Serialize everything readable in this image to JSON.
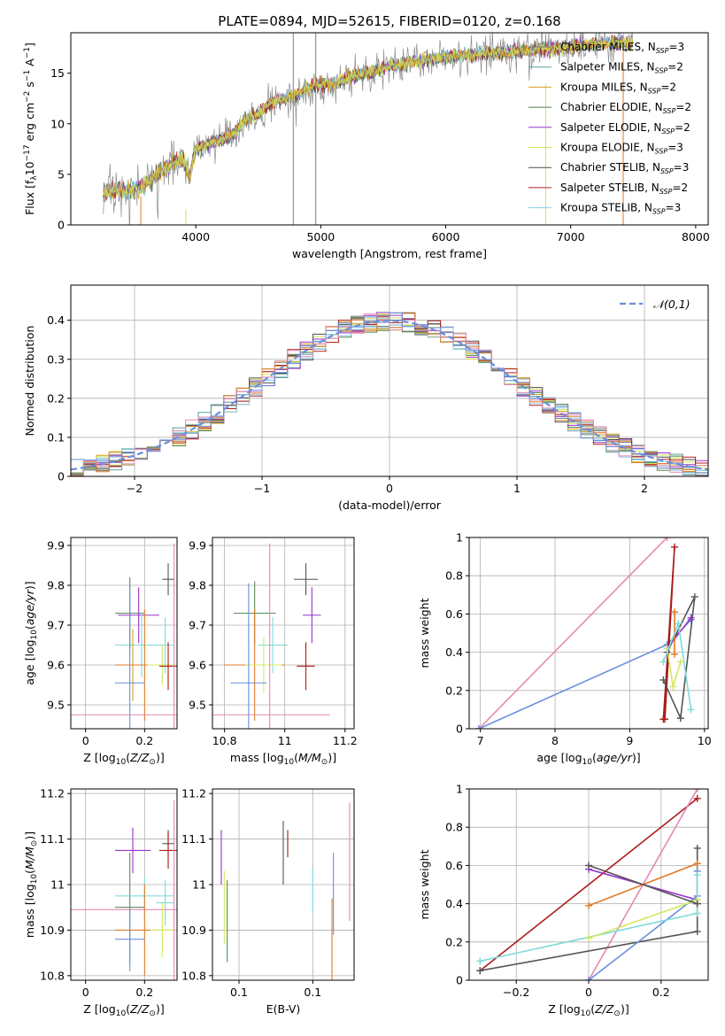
{
  "title": "PLATE=0894, MJD=52615, FIBERID=0120, z=0.168",
  "colors": {
    "Chabrier MILES": "#7f7f7f",
    "Salpeter MILES": "#5f9ea0",
    "Kroupa MILES": "#d4a017",
    "Chabrier ELODIE": "#4f7f4f",
    "Salpeter ELODIE": "#9932cc",
    "Kroupa ELODIE": "#d4e157",
    "Chabrier STELIB": "#4d4d4d",
    "Salpeter STELIB": "#b22222",
    "Kroupa STELIB": "#87ceeb",
    "blue": "#6a8fdc",
    "orange": "#e07b28",
    "pink": "#e589b3",
    "cyan": "#7fdada",
    "purple": "#9933cc",
    "darkgray": "#555555",
    "darkred": "#aa1a1a",
    "yellowgreen": "#d4e860",
    "green": "#5a8a5a"
  },
  "chart_data": [
    {
      "type": "line",
      "xlabel": "wavelength [Angstrom, rest frame]",
      "ylabel": "Flux [f_λ10⁻¹⁷ erg cm⁻² s⁻¹ A⁻¹]",
      "xlim": [
        3000,
        8100
      ],
      "ylim": [
        0,
        19
      ],
      "xticks": [
        4000,
        5000,
        6000,
        7000,
        8000
      ],
      "yticks": [
        0,
        5,
        10,
        15
      ],
      "legend": [
        {
          "label": "Chabrier MILES, N_SSP=3",
          "color": "#7f7f7f"
        },
        {
          "label": "Salpeter MILES, N_SSP=2",
          "color": "#5f9ea0"
        },
        {
          "label": "Kroupa MILES, N_SSP=2",
          "color": "#d4a017"
        },
        {
          "label": "Chabrier ELODIE, N_SSP=2",
          "color": "#4f7f4f"
        },
        {
          "label": "Salpeter ELODIE, N_SSP=2",
          "color": "#9932cc"
        },
        {
          "label": "Kroupa ELODIE, N_SSP=3",
          "color": "#d4e157"
        },
        {
          "label": "Chabrier STELIB, N_SSP=3",
          "color": "#4d4d4d"
        },
        {
          "label": "Salpeter STELIB, N_SSP=2",
          "color": "#b22222"
        },
        {
          "label": "Kroupa STELIB, N_SSP=3",
          "color": "#87ceeb"
        }
      ],
      "spectrum_anchor_points": [
        [
          3260,
          3.3
        ],
        [
          3500,
          3.4
        ],
        [
          3600,
          4.0
        ],
        [
          3700,
          5.0
        ],
        [
          3800,
          6.0
        ],
        [
          3900,
          6.5
        ],
        [
          3950,
          4.5
        ],
        [
          4000,
          7.5
        ],
        [
          4100,
          8.0
        ],
        [
          4200,
          8.5
        ],
        [
          4300,
          9.0
        ],
        [
          4400,
          10.5
        ],
        [
          4500,
          11.0
        ],
        [
          4600,
          12.0
        ],
        [
          4700,
          12.5
        ],
        [
          4800,
          12.8
        ],
        [
          4900,
          13.5
        ],
        [
          5000,
          14.0
        ],
        [
          5100,
          13.8
        ],
        [
          5200,
          14.5
        ],
        [
          5300,
          14.8
        ],
        [
          5400,
          15.0
        ],
        [
          5500,
          15.5
        ],
        [
          5600,
          15.8
        ],
        [
          5700,
          16.0
        ],
        [
          5800,
          16.3
        ],
        [
          5900,
          16.5
        ],
        [
          6000,
          16.7
        ],
        [
          6200,
          16.8
        ],
        [
          6400,
          17.0
        ],
        [
          6600,
          17.2
        ],
        [
          6800,
          17.4
        ],
        [
          7000,
          17.6
        ],
        [
          7200,
          17.9
        ],
        [
          7400,
          18.0
        ]
      ]
    },
    {
      "type": "histogram",
      "xlabel": "(data-model)/error",
      "ylabel": "Normed distribution",
      "xlim": [
        -2.5,
        2.5
      ],
      "ylim": [
        0,
        0.49
      ],
      "xticks": [
        -2,
        -1,
        0,
        1,
        2
      ],
      "yticks": [
        0.0,
        0.1,
        0.2,
        0.3,
        0.4
      ],
      "legend": [
        {
          "label": "𝒩(0,1)",
          "color": "#6a8fdc",
          "style": "dashed"
        }
      ],
      "gaussian": {
        "mean": 0,
        "sigma": 1
      }
    },
    {
      "type": "scatter",
      "xlabel": "Z [log10(Z/Z⊙)]",
      "ylabel": "age  [log10(age/yr)]",
      "xlim": [
        -0.05,
        0.31
      ],
      "ylim": [
        9.44,
        9.92
      ],
      "xticks": [
        0.0,
        0.2
      ],
      "yticks": [
        9.5,
        9.6,
        9.7,
        9.8,
        9.9
      ],
      "points": [
        {
          "x": 0.28,
          "y": 9.815,
          "xerr": 0.02,
          "yerr": 0.04,
          "color": "#555555"
        },
        {
          "x": 0.15,
          "y": 9.73,
          "xerr": 0.05,
          "yerr": 0.09,
          "color": "#5a8a5a"
        },
        {
          "x": 0.18,
          "y": 9.725,
          "xerr": 0.07,
          "yerr": 0.07,
          "color": "#9933cc"
        },
        {
          "x": 0.19,
          "y": 9.65,
          "xerr": 0.09,
          "yerr": 0.08,
          "color": "#7fdada"
        },
        {
          "x": 0.27,
          "y": 9.65,
          "xerr": 0.03,
          "yerr": 0.07,
          "color": "#7fdada"
        },
        {
          "x": 0.16,
          "y": 9.6,
          "xerr": 0.06,
          "yerr": 0.09,
          "color": "#d4a017"
        },
        {
          "x": 0.2,
          "y": 9.6,
          "xerr": 0.1,
          "yerr": 0.14,
          "color": "#e07b28"
        },
        {
          "x": 0.26,
          "y": 9.6,
          "xerr": 0.05,
          "yerr": 0.05,
          "color": "#d4e860"
        },
        {
          "x": 0.28,
          "y": 9.597,
          "xerr": 0.03,
          "yerr": 0.06,
          "color": "#aa1a1a"
        },
        {
          "x": 0.15,
          "y": 9.555,
          "xerr": 0.05,
          "yerr": 0.25,
          "color": "#6a8fdc"
        },
        {
          "x": 0.3,
          "y": 9.475,
          "xerr": 0.35,
          "yerr": 0.43,
          "color": "#e589b3"
        }
      ]
    },
    {
      "type": "scatter",
      "xlabel": "mass [log10(M/M⊙)]",
      "ylabel": "",
      "xlim": [
        10.76,
        11.23
      ],
      "ylim": [
        9.44,
        9.92
      ],
      "xticks": [
        10.8,
        11.0,
        11.2
      ],
      "yticks": [
        9.5,
        9.6,
        9.7,
        9.8,
        9.9
      ],
      "points": [
        {
          "x": 11.07,
          "y": 9.815,
          "xerr": 0.04,
          "yerr": 0.04,
          "color": "#555555"
        },
        {
          "x": 10.9,
          "y": 9.73,
          "xerr": 0.07,
          "yerr": 0.08,
          "color": "#5a8a5a"
        },
        {
          "x": 11.09,
          "y": 9.725,
          "xerr": 0.03,
          "yerr": 0.07,
          "color": "#9933cc"
        },
        {
          "x": 10.96,
          "y": 9.65,
          "xerr": 0.05,
          "yerr": 0.07,
          "color": "#7fdada"
        },
        {
          "x": 10.9,
          "y": 9.6,
          "xerr": 0.1,
          "yerr": 0.14,
          "color": "#e07b28"
        },
        {
          "x": 10.93,
          "y": 9.6,
          "xerr": 0.06,
          "yerr": 0.07,
          "color": "#d4e860"
        },
        {
          "x": 11.07,
          "y": 9.597,
          "xerr": 0.03,
          "yerr": 0.06,
          "color": "#aa1a1a"
        },
        {
          "x": 10.88,
          "y": 9.555,
          "xerr": 0.06,
          "yerr": 0.25,
          "color": "#6a8fdc"
        },
        {
          "x": 10.95,
          "y": 9.475,
          "xerr": 0.2,
          "yerr": 0.43,
          "color": "#e589b3"
        }
      ]
    },
    {
      "type": "line",
      "xlabel": "age  [log10(age/yr)]",
      "ylabel": "mass weight",
      "xlim": [
        6.85,
        10.05
      ],
      "ylim": [
        0,
        1.0
      ],
      "xticks": [
        7,
        8,
        9,
        10
      ],
      "yticks": [
        0.0,
        0.2,
        0.4,
        0.6,
        0.8,
        1.0
      ],
      "series": [
        {
          "color": "#e589b3",
          "x": [
            6.98,
            9.5
          ],
          "y": [
            0.0,
            1.0
          ]
        },
        {
          "color": "#6a8fdc",
          "x": [
            6.98,
            9.5,
            9.82
          ],
          "y": [
            0.0,
            0.44,
            0.57
          ]
        },
        {
          "color": "#aa1a1a",
          "x": [
            9.45,
            9.6,
            9.47
          ],
          "y": [
            0.05,
            0.95,
            0.05
          ]
        },
        {
          "color": "#555555",
          "x": [
            9.45,
            9.68,
            9.87,
            9.5
          ],
          "y": [
            0.255,
            0.055,
            0.69,
            0.4
          ]
        },
        {
          "color": "#9933cc",
          "x": [
            9.5,
            9.82
          ],
          "y": [
            0.42,
            0.58
          ]
        },
        {
          "color": "#e07b28",
          "x": [
            9.6,
            9.6
          ],
          "y": [
            0.39,
            0.61
          ]
        },
        {
          "color": "#d4e860",
          "x": [
            9.5,
            9.58,
            9.68
          ],
          "y": [
            0.42,
            0.22,
            0.35
          ]
        },
        {
          "color": "#7fdada",
          "x": [
            9.45,
            9.65,
            9.82
          ],
          "y": [
            0.35,
            0.55,
            0.1
          ]
        }
      ]
    },
    {
      "type": "scatter",
      "xlabel": "Z [log10(Z/Z⊙)]",
      "ylabel": "mass [log10(M/M⊙)]",
      "xlim": [
        -0.05,
        0.31
      ],
      "ylim": [
        10.79,
        11.21
      ],
      "xticks": [
        0.0,
        0.2
      ],
      "yticks": [
        10.8,
        10.9,
        11.0,
        11.1,
        11.2
      ],
      "points": [
        {
          "x": 0.28,
          "y": 11.09,
          "xerr": 0.02,
          "yerr": 0.03,
          "color": "#555555"
        },
        {
          "x": 0.28,
          "y": 11.075,
          "xerr": 0.03,
          "yerr": 0.04,
          "color": "#aa1a1a"
        },
        {
          "x": 0.16,
          "y": 11.075,
          "xerr": 0.06,
          "yerr": 0.05,
          "color": "#9933cc"
        },
        {
          "x": 0.15,
          "y": 10.95,
          "xerr": 0.05,
          "yerr": 0.12,
          "color": "#5a8a5a"
        },
        {
          "x": 0.2,
          "y": 10.975,
          "xerr": 0.1,
          "yerr": 0.04,
          "color": "#7fdada"
        },
        {
          "x": 0.27,
          "y": 10.96,
          "xerr": 0.03,
          "yerr": 0.05,
          "color": "#7fdada"
        },
        {
          "x": 0.3,
          "y": 10.945,
          "xerr": 0.35,
          "yerr": 0.24,
          "color": "#e589b3"
        },
        {
          "x": 0.2,
          "y": 10.9,
          "xerr": 0.1,
          "yerr": 0.1,
          "color": "#e07b28"
        },
        {
          "x": 0.26,
          "y": 10.9,
          "xerr": 0.04,
          "yerr": 0.06,
          "color": "#d4e860"
        },
        {
          "x": 0.15,
          "y": 10.88,
          "xerr": 0.05,
          "yerr": 0.07,
          "color": "#6a8fdc"
        }
      ]
    },
    {
      "type": "scatter",
      "xlabel": "E(B-V)",
      "ylabel": "",
      "xlim": [
        0.032,
        0.128
      ],
      "ylim": [
        10.79,
        11.21
      ],
      "xticks": [
        0.05,
        0.1
      ],
      "yticks": [
        10.8,
        10.9,
        11.0,
        11.1,
        11.2
      ],
      "points": [
        {
          "x": 0.038,
          "y": 11.06,
          "yerr": 0.06,
          "color": "#9933cc"
        },
        {
          "x": 0.04,
          "y": 10.95,
          "yerr": 0.08,
          "color": "#d4e860"
        },
        {
          "x": 0.042,
          "y": 10.92,
          "yerr": 0.09,
          "color": "#5a8a5a"
        },
        {
          "x": 0.08,
          "y": 11.07,
          "yerr": 0.07,
          "color": "#555555"
        },
        {
          "x": 0.083,
          "y": 11.09,
          "yerr": 0.03,
          "color": "#aa1a1a"
        },
        {
          "x": 0.1,
          "y": 10.99,
          "yerr": 0.05,
          "color": "#7fdada"
        },
        {
          "x": 0.114,
          "y": 10.98,
          "yerr": 0.09,
          "color": "#6a8fdc"
        },
        {
          "x": 0.113,
          "y": 10.88,
          "yerr": 0.09,
          "color": "#e07b28"
        },
        {
          "x": 0.125,
          "y": 11.05,
          "yerr": 0.13,
          "color": "#e589b3"
        }
      ]
    },
    {
      "type": "line",
      "xlabel": "Z [log10(Z/Z⊙)]",
      "ylabel": "mass weight",
      "xlim": [
        -0.33,
        0.33
      ],
      "ylim": [
        0,
        1.0
      ],
      "xticks": [
        -0.2,
        0.0,
        0.2
      ],
      "yticks": [
        0.0,
        0.2,
        0.4,
        0.6,
        0.8,
        1.0
      ],
      "series": [
        {
          "color": "#aa1a1a",
          "x": [
            -0.3,
            0.3
          ],
          "y": [
            0.05,
            0.95
          ]
        },
        {
          "color": "#e589b3",
          "x": [
            0.0,
            0.3
          ],
          "y": [
            0.0,
            1.0
          ]
        },
        {
          "color": "#555555",
          "x": [
            -0.3,
            0.3,
            0.3,
            0.3
          ],
          "y": [
            0.05,
            0.255,
            0.4,
            0.69
          ]
        },
        {
          "color": "#e07b28",
          "x": [
            0.0,
            0.3,
            0.3
          ],
          "y": [
            0.39,
            0.61,
            0.4
          ]
        },
        {
          "color": "#9933cc",
          "x": [
            0.0,
            0.3
          ],
          "y": [
            0.58,
            0.42
          ]
        },
        {
          "color": "#6a8fdc",
          "x": [
            0.0,
            0.3,
            0.3
          ],
          "y": [
            0.0,
            0.44,
            0.57
          ]
        },
        {
          "color": "#7fdada",
          "x": [
            -0.3,
            0.3,
            0.3
          ],
          "y": [
            0.1,
            0.35,
            0.55
          ]
        },
        {
          "color": "#d4e860",
          "x": [
            0.0,
            0.3
          ],
          "y": [
            0.22,
            0.42
          ]
        },
        {
          "color": "#555555",
          "x": [
            0.0,
            0.3
          ],
          "y": [
            0.6,
            0.4
          ]
        }
      ]
    }
  ]
}
